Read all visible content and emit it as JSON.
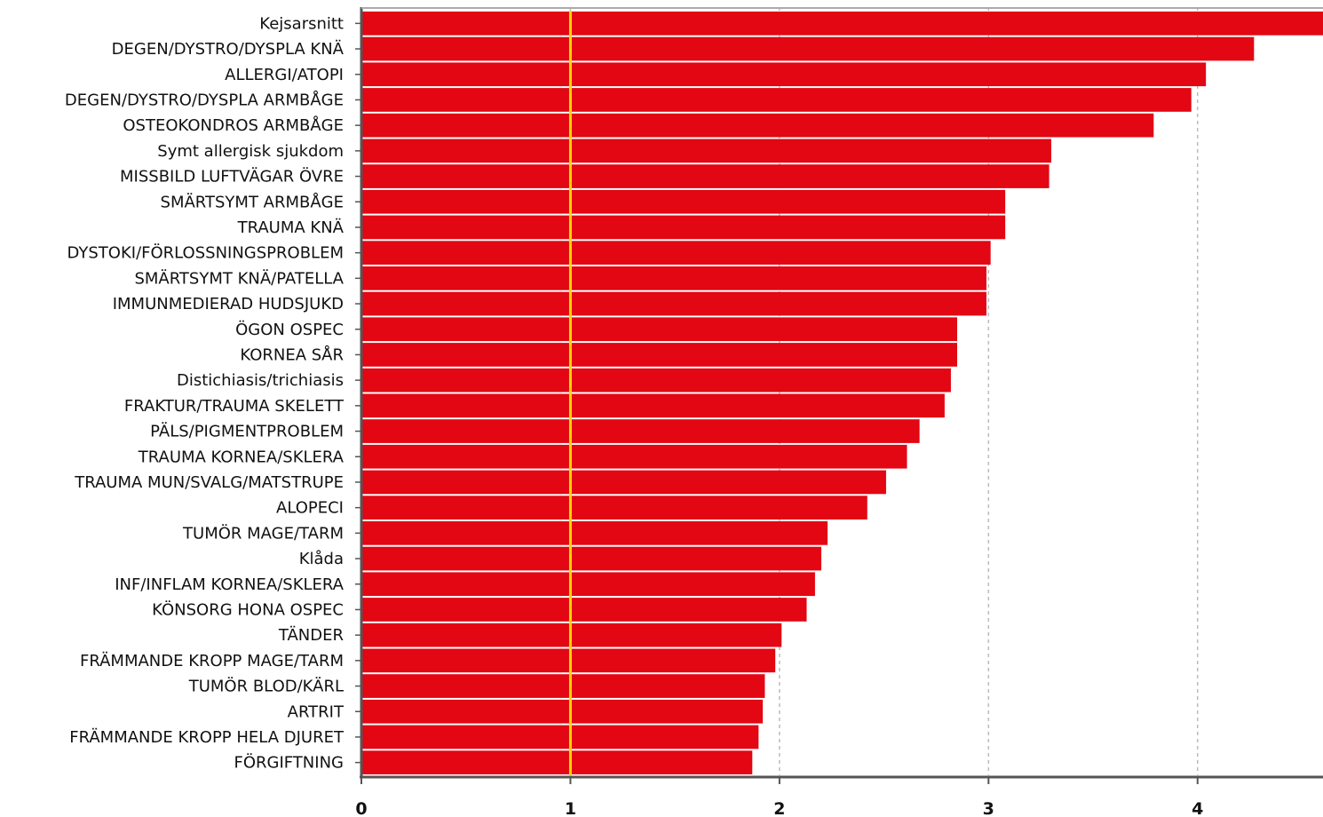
{
  "chart_data": {
    "type": "bar",
    "orientation": "horizontal",
    "categories": [
      "Kejsarsnitt",
      "DEGEN/DYSTRO/DYSPLA KNÄ",
      "ALLERGI/ATOPI",
      "DEGEN/DYSTRO/DYSPLA ARMBÅGE",
      "OSTEOKONDROS ARMBÅGE",
      "Symt allergisk sjukdom",
      "MISSBILD LUFTVÄGAR ÖVRE",
      "SMÄRTSYMT ARMBÅGE",
      "TRAUMA KNÄ",
      "DYSTOKI/FÖRLOSSNINGSPROBLEM",
      "SMÄRTSYMT KNÄ/PATELLA",
      "IMMUNMEDIERAD HUDSJUKD",
      "ÖGON OSPEC",
      "KORNEA SÅR",
      "Distichiasis/trichiasis",
      "FRAKTUR/TRAUMA SKELETT",
      "PÄLS/PIGMENTPROBLEM",
      "TRAUMA KORNEA/SKLERA",
      "TRAUMA MUN/SVALG/MATSTRUPE",
      "ALOPECI",
      "TUMÖR MAGE/TARM",
      "Klåda",
      "INF/INFLAM KORNEA/SKLERA",
      "KÖNSORG HONA OSPEC",
      "TÄNDER",
      "FRÄMMANDE KROPP MAGE/TARM",
      "TUMÖR BLOD/KÄRL",
      "ARTRIT",
      "FRÄMMANDE KROPP HELA DJURET",
      "FÖRGIFTNING"
    ],
    "values": [
      4.62,
      4.27,
      4.04,
      3.97,
      3.79,
      3.3,
      3.29,
      3.08,
      3.08,
      3.01,
      2.99,
      2.99,
      2.85,
      2.85,
      2.82,
      2.79,
      2.67,
      2.61,
      2.51,
      2.42,
      2.23,
      2.2,
      2.17,
      2.13,
      2.01,
      1.98,
      1.93,
      1.92,
      1.9,
      1.87
    ],
    "xlim": [
      0,
      4.6
    ],
    "xticks": [
      0,
      1,
      2,
      3,
      4
    ],
    "reference_line": 1,
    "grid": "vertical-dashed",
    "title": "",
    "xlabel": "",
    "ylabel": "",
    "colors": {
      "bar": "#e30613",
      "reference_line": "#ffd700",
      "grid": "#bbbbbb",
      "axis": "#555555"
    }
  }
}
